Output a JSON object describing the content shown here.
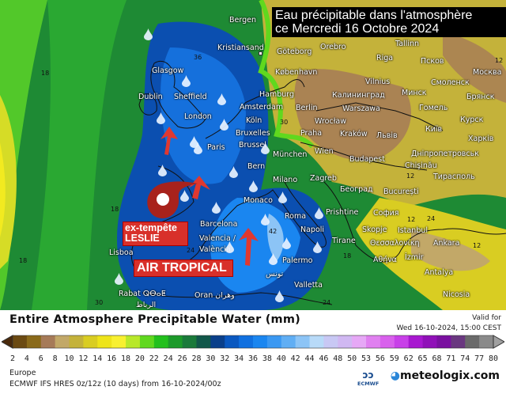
{
  "title": {
    "line1": "Eau précipitable dans l'atmosphère",
    "line2": "ce Mercredi 16 Octobre 2024"
  },
  "annotations": {
    "storm_line1": "ex-tempête",
    "storm_line2": "LESLIE",
    "air": "AIR TROPICAL"
  },
  "cities": [
    "Bergen",
    "Kristiansand",
    "Göteborg",
    "Orebro",
    "Tallinn",
    "København",
    "Glasgow",
    "Dublin",
    "Sheffield",
    "London",
    "Amsterdam",
    "Hamburg",
    "Berlin",
    "Köln",
    "Bruxelles",
    "Brussel",
    "Paris",
    "München",
    "Bern",
    "Praha",
    "Riga",
    "Vilnius",
    "Калининград",
    "Минск",
    "Warszawa",
    "Wrocław",
    "Kraków",
    "Львів",
    "Wien",
    "Budapest",
    "Zagreb",
    "Београд",
    "București",
    "Chişinău",
    "Тирасполь",
    "Київ",
    "Дніпропетровськ",
    "Гомель",
    "Смоленск",
    "Москва",
    "Псков",
    "Брянск",
    "Курск",
    "Харків",
    "Monaco",
    "Roma",
    "Napoli",
    "Barcelona",
    "Valencia /",
    "València",
    "Lisboa",
    "Palermo",
    "Valletta",
    "Oran وهران",
    "Rabat ⵕⴱⴰⵟ",
    "الرباط",
    "Prishtine",
    "София",
    "Skopje",
    "Tirane",
    "Istanbul",
    "Ankara",
    "Θεσσαλονίκη",
    "Αθήνα",
    "İzmir",
    "Antalya",
    "Nicosia",
    "Milano",
    "تونس"
  ],
  "contour_labels": [
    "18",
    "18",
    "18",
    "36",
    "30",
    "24",
    "42",
    "12",
    "12",
    "24",
    "12",
    "30",
    "24",
    "18",
    "12"
  ],
  "legend": {
    "title": "Entire Atmosphere Precipitable Water (mm)",
    "valid_label": "Valid for",
    "valid_time": "Wed 16-10-2024, 15:00 CEST",
    "ticks": [
      "2",
      "4",
      "6",
      "8",
      "10",
      "12",
      "14",
      "16",
      "18",
      "20",
      "22",
      "24",
      "26",
      "28",
      "30",
      "32",
      "34",
      "36",
      "38",
      "40",
      "42",
      "44",
      "46",
      "48",
      "50",
      "53",
      "56",
      "59",
      "62",
      "65",
      "68",
      "71",
      "74",
      "77",
      "80"
    ],
    "colors": [
      "#4a2a0c",
      "#6b4a12",
      "#8a6a1a",
      "#a67a58",
      "#c2a868",
      "#c4b23a",
      "#d9cd22",
      "#eee41a",
      "#f8f030",
      "#b8e82a",
      "#60d81e",
      "#22c01c",
      "#1c9a2a",
      "#1a7a3a",
      "#11574a",
      "#0a3f8a",
      "#0a58c0",
      "#1070e0",
      "#1a86f0",
      "#3a98f2",
      "#60aef4",
      "#8cc4f6",
      "#b8daf8",
      "#c8c8f4",
      "#d0b8f2",
      "#e6a8f6",
      "#e080f0",
      "#d860ec",
      "#c840e8",
      "#a818d0",
      "#9010b8",
      "#7a10a0",
      "#6a3880",
      "#6a6a6a",
      "#8a8a8a",
      "#a0a0a0"
    ]
  },
  "footer": {
    "region": "Europe",
    "model": "ECMWF IFS HRES 0z/12z (10 days) from  16-10-2024/00z",
    "ecmwf": "ECMWF",
    "brand": "meteologix.com"
  }
}
